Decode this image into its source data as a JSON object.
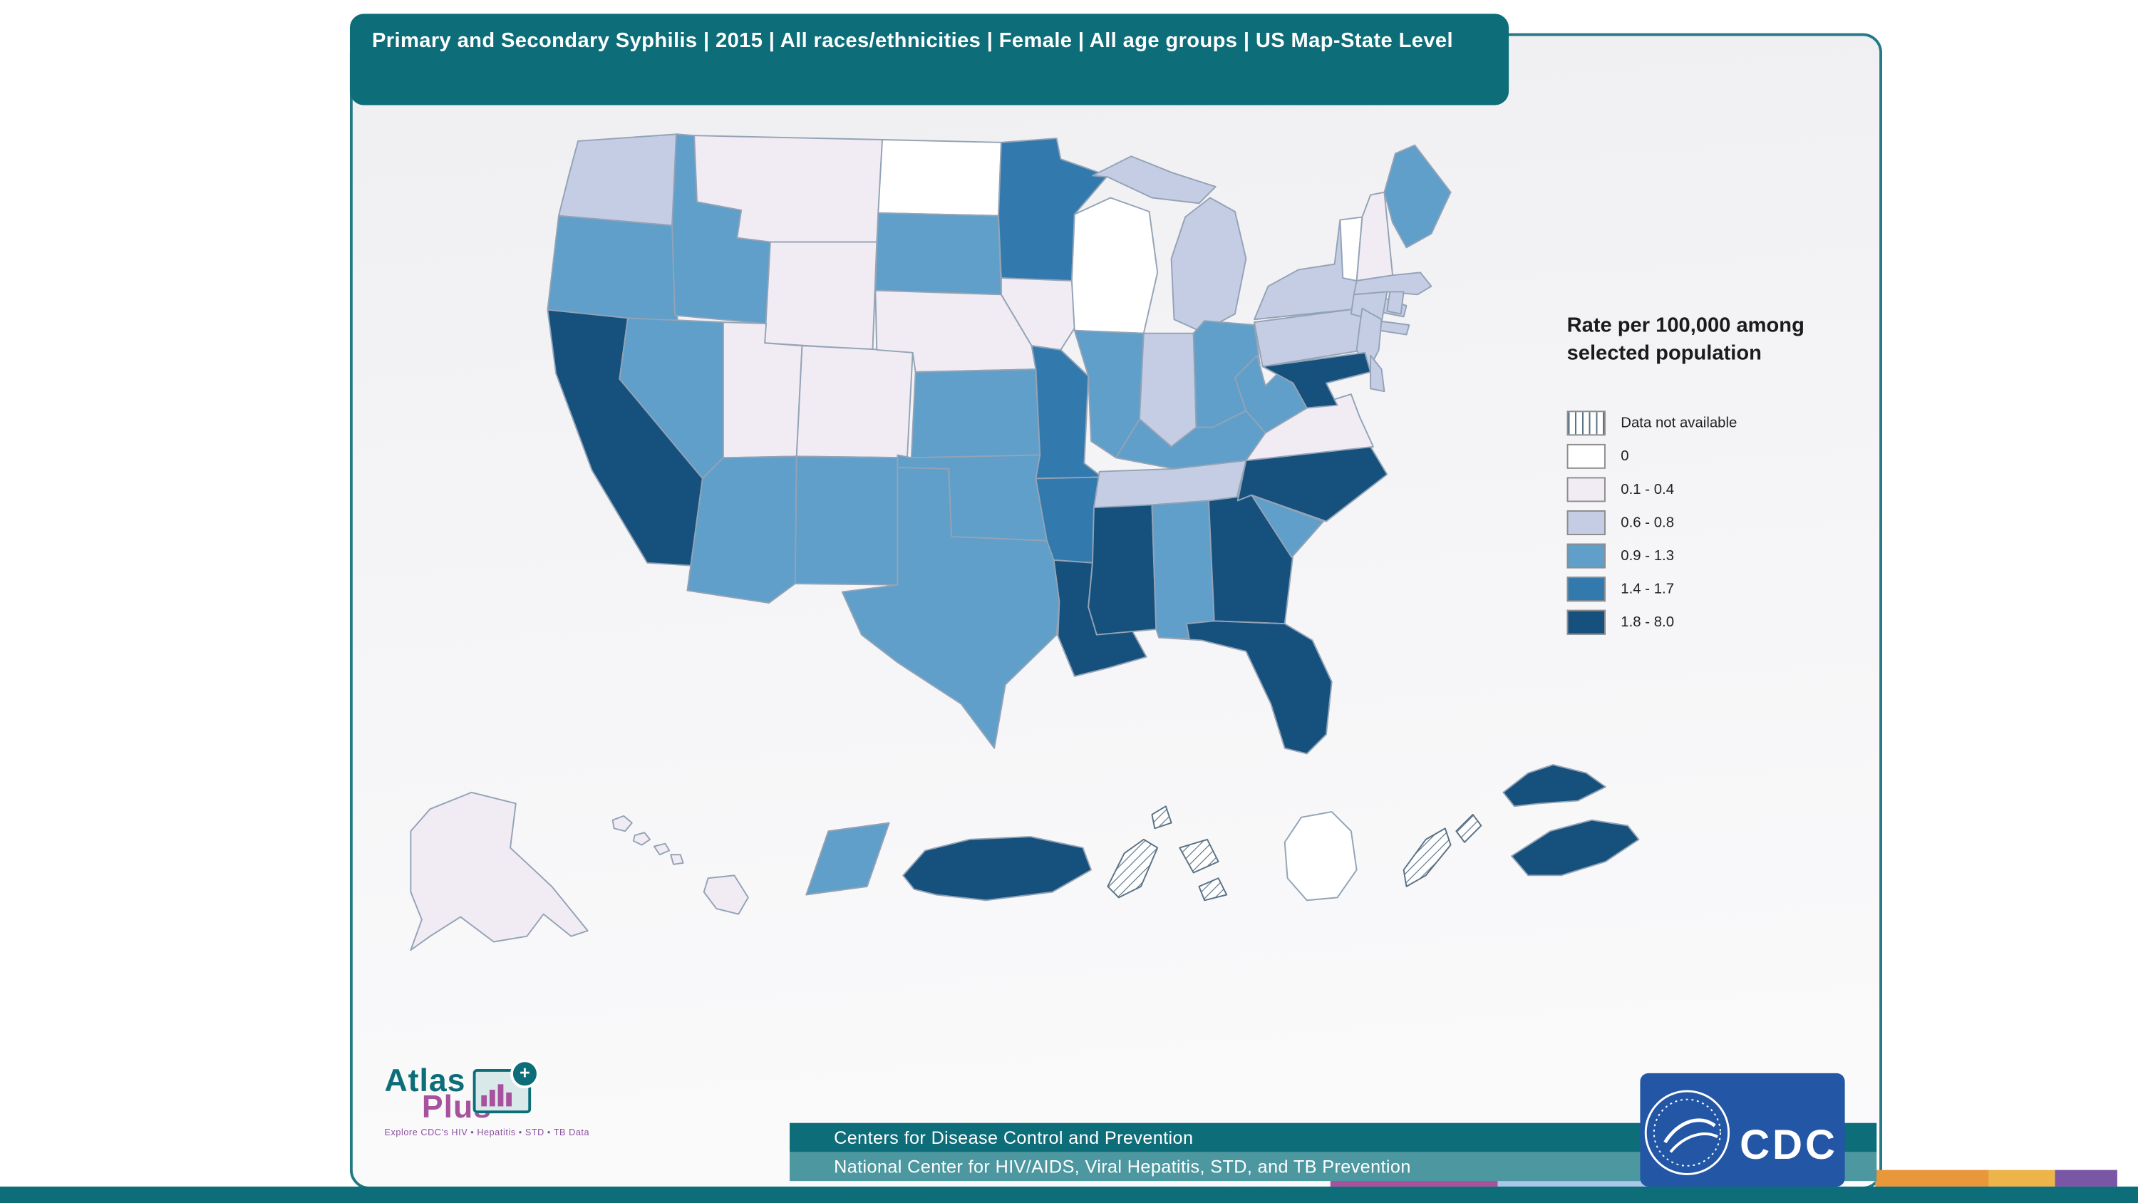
{
  "header": {
    "title": "Primary and Secondary Syphilis | 2015 | All races/ethnicities | Female | All age groups | US Map-State Level"
  },
  "legend": {
    "title": "Rate per 100,000 among selected population"
  },
  "footer": {
    "line1": "Centers for Disease Control and Prevention",
    "line2": "National Center for HIV/AIDS, Viral Hepatitis, STD, and TB Prevention"
  },
  "logos": {
    "atlas": "Atlas",
    "plus": "Plus",
    "atlas_tagline": "Explore CDC's HIV • Hepatitis • STD • TB Data",
    "cdc": "CDC"
  },
  "theme_colors": {
    "teal": "#0d6d79",
    "teal_light": "#4d98a0",
    "panel_border": "#247985",
    "magenta": "#a8519e",
    "cdc_blue": "#2456a6"
  },
  "footer_strips": [
    "#a8519e",
    "#a9c7e9",
    "#7ea3cf",
    "#e8973b",
    "#edb44a",
    "#7a57a5"
  ],
  "chart_data": {
    "type": "choropleth",
    "title": "Primary and Secondary Syphilis | 2015 | All races/ethnicities | Female | All age groups | US Map-State Level",
    "measure": "Rate per 100,000 among selected population",
    "bins": [
      {
        "id": "na",
        "label": "Data not available",
        "color": "hatch"
      },
      {
        "id": "v0",
        "label": "0",
        "color": "#ffffff"
      },
      {
        "id": "r1",
        "label": "0.1 - 0.4",
        "color": "#f1ecf4"
      },
      {
        "id": "r2",
        "label": "0.6 - 0.8",
        "color": "#c4cde4"
      },
      {
        "id": "r3",
        "label": "0.9 - 1.3",
        "color": "#5f9fc9"
      },
      {
        "id": "r4",
        "label": "1.4 - 1.7",
        "color": "#3279ad"
      },
      {
        "id": "r5",
        "label": "1.8 - 8.0",
        "color": "#16507d"
      }
    ],
    "state_bins": {
      "WA": "r2",
      "OR": "r3",
      "CA": "r5",
      "NV": "r3",
      "ID": "r3",
      "MT": "r1",
      "WY": "r1",
      "UT": "r1",
      "CO": "r1",
      "AZ": "r3",
      "NM": "r3",
      "ND": "v0",
      "SD": "r3",
      "NE": "r1",
      "KS": "r3",
      "OK": "r3",
      "TX": "r3",
      "MN": "r4",
      "IA": "r1",
      "MO": "r4",
      "AR": "r4",
      "LA": "r5",
      "WI": "v0",
      "IL": "r3",
      "MI": "r2",
      "IN": "r2",
      "OH": "r3",
      "KY": "r3",
      "TN": "r2",
      "MS": "r5",
      "AL": "r3",
      "GA": "r5",
      "FL": "r5",
      "SC": "r3",
      "NC": "r5",
      "VA": "r1",
      "WV": "r3",
      "MD": "r5",
      "DE": "r2",
      "PA": "r2",
      "NJ": "r2",
      "NY": "r2",
      "CT": "r2",
      "RI": "r2",
      "MA": "r2",
      "VT": "v0",
      "NH": "r1",
      "ME": "r3",
      "AK": "r1",
      "HI": "r1",
      "T1": "r3",
      "PR": "r5",
      "TH1": "na",
      "TH2": "na",
      "TH3": "na",
      "TH4": "na",
      "TW1": "v0",
      "TH5": "na",
      "TH6": "na",
      "VI": "r5"
    }
  }
}
